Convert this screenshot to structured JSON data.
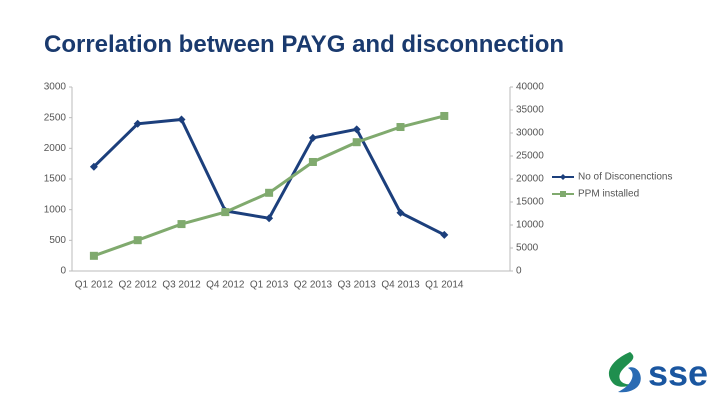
{
  "chart_data": {
    "type": "line",
    "title": "Correlation between PAYG and disconnection",
    "categories": [
      "Q1 2012",
      "Q2 2012",
      "Q3 2012",
      "Q4 2012",
      "Q1 2013",
      "Q2 2013",
      "Q3 2013",
      "Q4 2013",
      "Q1 2014",
      null
    ],
    "series": [
      {
        "name": "No of Disconenctions",
        "color": "#1c3f7c",
        "marker": "diamond",
        "values": [
          1700,
          2400,
          2470,
          980,
          860,
          2170,
          2310,
          950,
          590,
          null
        ]
      },
      {
        "name": "PPM installed",
        "color": "#80aa6e",
        "marker": "square",
        "axis": "y2",
        "values": [
          3300,
          6700,
          10200,
          12800,
          17000,
          23700,
          28000,
          31300,
          33700,
          null
        ]
      }
    ],
    "ylim": [
      0,
      3000
    ],
    "yticks": [
      0,
      500,
      1000,
      1500,
      2000,
      2500,
      3000
    ],
    "y2lim": [
      0,
      40000
    ],
    "y2ticks": [
      0,
      5000,
      10000,
      15000,
      20000,
      25000,
      30000,
      35000,
      40000
    ],
    "grid": false,
    "legend": "right"
  },
  "logo": "sse"
}
